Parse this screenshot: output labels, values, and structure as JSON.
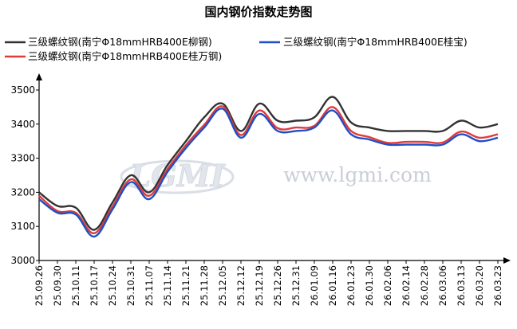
{
  "chart_data": {
    "type": "line",
    "title": "国内钢价指数走势图",
    "categories": [
      "25.09.26",
      "25.09.30",
      "25.10.11",
      "25.10.17",
      "25.10.24",
      "25.10.31",
      "25.11.07",
      "25.11.14",
      "25.11.21",
      "25.11.28",
      "25.12.05",
      "25.12.12",
      "25.12.19",
      "25.12.26",
      "25.12.31",
      "26.01.09",
      "26.01.16",
      "26.01.23",
      "26.01.30",
      "26.02.06",
      "26.02.14",
      "26.02.28",
      "26.03.06",
      "26.03.13",
      "26.03.20",
      "26.03.23"
    ],
    "ylim": [
      3000,
      3500
    ],
    "yticks": [
      3000,
      3100,
      3200,
      3300,
      3400,
      3500
    ],
    "grid": false,
    "legend_position": "top",
    "series": [
      {
        "name": "三级螺纹钢(南宁Φ18mmHRB400E柳钢)",
        "color": "#333333",
        "values": [
          3200,
          3160,
          3155,
          3090,
          3170,
          3250,
          3200,
          3280,
          3350,
          3420,
          3460,
          3380,
          3460,
          3410,
          3410,
          3420,
          3480,
          3405,
          3390,
          3380,
          3380,
          3380,
          3380,
          3410,
          3390,
          3400
        ]
      },
      {
        "name": "三级螺纹钢(南宁Φ18mmHRB400E桂宝)",
        "color": "#1f4fc4",
        "values": [
          3180,
          3140,
          3135,
          3070,
          3150,
          3230,
          3180,
          3260,
          3330,
          3390,
          3445,
          3360,
          3430,
          3380,
          3380,
          3390,
          3440,
          3370,
          3355,
          3340,
          3340,
          3340,
          3340,
          3370,
          3350,
          3360
        ]
      },
      {
        "name": "三级螺纹钢(南宁Φ18mmHRB400E桂万钢)",
        "color": "#e03a3a",
        "values": [
          3190,
          3145,
          3140,
          3080,
          3158,
          3238,
          3190,
          3268,
          3338,
          3398,
          3452,
          3368,
          3440,
          3388,
          3390,
          3395,
          3450,
          3380,
          3362,
          3345,
          3348,
          3348,
          3346,
          3378,
          3360,
          3370
        ]
      }
    ]
  },
  "watermark": {
    "logo": "LGMI",
    "url": "www.lgmi.com"
  }
}
